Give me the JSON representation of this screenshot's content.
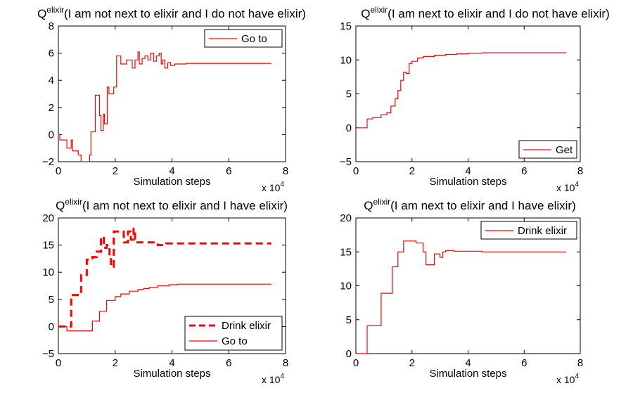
{
  "figure": {
    "charts": [
      {
        "title_q": "Q",
        "title_sup": "elixir",
        "title_rest": "(I am not next to elixir and I do not have elixir)"
      },
      {
        "title_q": "Q",
        "title_sup": "elixir",
        "title_rest": "(I am next to elixir and I do not have elixir)"
      },
      {
        "title_q": "Q",
        "title_sup": "elixir",
        "title_rest": "(I am not next to elixir and I have elixir)"
      },
      {
        "title_q": "Q",
        "title_sup": "elixir",
        "title_rest": "(I am next to elixir and I have elixir)"
      }
    ]
  },
  "chart_data": [
    {
      "type": "line",
      "title": "Q^elixir(I am not next to elixir and I do not have elixir)",
      "xlabel": "Simulation steps",
      "x_multiplier": "x 10^4",
      "xlim": [
        0,
        8
      ],
      "ylim": [
        -2,
        8
      ],
      "xticks": [
        "0",
        "2",
        "4",
        "6",
        "8"
      ],
      "yticks": [
        "-2",
        "0",
        "2",
        "4",
        "6",
        "8"
      ],
      "legend": "top-right",
      "series": [
        {
          "name": "Go to",
          "color": "#ff0000",
          "style": "solid",
          "step": true,
          "x": [
            0,
            0.05,
            0.3,
            0.45,
            0.5,
            0.7,
            0.8,
            1.1,
            1.15,
            1.3,
            1.45,
            1.5,
            1.58,
            1.62,
            1.72,
            1.78,
            1.95,
            2.05,
            2.2,
            2.4,
            2.6,
            2.7,
            2.8,
            2.85,
            2.95,
            3.05,
            3.15,
            3.25,
            3.35,
            3.45,
            3.55,
            3.62,
            3.68,
            3.75,
            3.85,
            3.95,
            4.1,
            4.5,
            5,
            6,
            7,
            7.5
          ],
          "y": [
            0,
            -0.4,
            -1.0,
            -0.4,
            -1.2,
            -1.5,
            -2.0,
            -1.5,
            0.2,
            2.9,
            1.4,
            0.3,
            1.5,
            0.8,
            3.5,
            3.0,
            3.5,
            5.8,
            5.2,
            5.5,
            4.9,
            5.5,
            6.1,
            5.2,
            5.6,
            5.8,
            5.5,
            6.0,
            5.4,
            5.8,
            6.0,
            5.2,
            5.5,
            4.9,
            5.3,
            5.1,
            5.2,
            5.25,
            5.25,
            5.25,
            5.25,
            5.25
          ]
        }
      ]
    },
    {
      "type": "line",
      "title": "Q^elixir(I am next to elixir and I do not have elixir)",
      "xlabel": "Simulation steps",
      "x_multiplier": "x 10^4",
      "xlim": [
        0,
        8
      ],
      "ylim": [
        -5,
        15
      ],
      "xticks": [
        "0",
        "2",
        "4",
        "6",
        "8"
      ],
      "yticks": [
        "-5",
        "0",
        "5",
        "10",
        "15"
      ],
      "legend": "bottom-right",
      "series": [
        {
          "name": "Get",
          "color": "#ff0000",
          "style": "solid",
          "step": true,
          "x": [
            0,
            0.4,
            0.6,
            0.9,
            1.1,
            1.25,
            1.4,
            1.5,
            1.6,
            1.7,
            1.8,
            1.9,
            2.0,
            2.2,
            2.4,
            2.8,
            3.2,
            3.6,
            4.0,
            4.5,
            5,
            6,
            7,
            7.5
          ],
          "y": [
            0,
            1.3,
            1.5,
            1.9,
            2.2,
            3.2,
            4.3,
            5.5,
            7.0,
            8.2,
            8.0,
            9.5,
            9.8,
            10.3,
            10.5,
            10.7,
            10.8,
            10.9,
            11.0,
            11.05,
            11.05,
            11.05,
            11.05,
            11.05
          ]
        }
      ]
    },
    {
      "type": "line",
      "title": "Q^elixir(I am not next to elixir and I have elixir)",
      "xlabel": "Simulation steps",
      "x_multiplier": "x 10^4",
      "xlim": [
        0,
        8
      ],
      "ylim": [
        -5,
        20
      ],
      "xticks": [
        "0",
        "2",
        "4",
        "6",
        "8"
      ],
      "yticks": [
        "-5",
        "0",
        "5",
        "10",
        "15",
        "20"
      ],
      "legend": "bottom-right",
      "series": [
        {
          "name": "Drink elixir",
          "color": "#ff0000",
          "style": "dashed",
          "step": true,
          "x": [
            0,
            0.3,
            0.45,
            0.6,
            0.8,
            1.0,
            1.2,
            1.35,
            1.5,
            1.6,
            1.7,
            1.8,
            1.85,
            1.95,
            2.05,
            2.3,
            2.45,
            2.55,
            2.65,
            2.7,
            3.0,
            3.5,
            3.8,
            4.2,
            5,
            6,
            7,
            7.5
          ],
          "y": [
            0,
            0,
            5.8,
            5.8,
            9.5,
            12.3,
            12.8,
            13.8,
            16.5,
            14.5,
            15.0,
            13.0,
            11.0,
            17.5,
            17.5,
            15.5,
            17.5,
            16.0,
            18.0,
            15.5,
            15.5,
            15.0,
            15.3,
            15.3,
            15.3,
            15.3,
            15.3,
            15.3
          ]
        },
        {
          "name": "Go to",
          "color": "#ff0000",
          "style": "solid",
          "step": true,
          "x": [
            0,
            0.3,
            0.8,
            1.2,
            1.45,
            1.7,
            2.0,
            2.2,
            2.5,
            2.8,
            3.0,
            3.2,
            3.5,
            3.9,
            4.2,
            5,
            6,
            7,
            7.5
          ],
          "y": [
            0,
            -0.8,
            -0.8,
            1.0,
            2.8,
            4.8,
            5.5,
            6.0,
            6.5,
            6.8,
            7.0,
            7.2,
            7.5,
            7.7,
            7.8,
            7.8,
            7.8,
            7.8,
            7.8
          ]
        }
      ]
    },
    {
      "type": "line",
      "title": "Q^elixir(I am next to elixir and I have elixir)",
      "xlabel": "Simulation steps",
      "x_multiplier": "x 10^4",
      "xlim": [
        0,
        8
      ],
      "ylim": [
        0,
        20
      ],
      "xticks": [
        "0",
        "2",
        "4",
        "6",
        "8"
      ],
      "yticks": [
        "0",
        "5",
        "10",
        "15",
        "20"
      ],
      "legend": "top-right",
      "series": [
        {
          "name": "Drink elixir",
          "color": "#ff0000",
          "style": "solid",
          "step": true,
          "x": [
            0,
            0.35,
            0.4,
            0.9,
            1.3,
            1.5,
            1.7,
            2.15,
            2.4,
            2.5,
            2.8,
            3.0,
            3.1,
            3.2,
            3.5,
            4.5,
            5,
            6,
            7,
            7.5
          ],
          "y": [
            0,
            0,
            4.1,
            8.9,
            12.8,
            15.0,
            16.6,
            16.3,
            15.0,
            13.1,
            14.7,
            14.2,
            15.0,
            15.2,
            15.1,
            15.0,
            15.0,
            15.0,
            15.0,
            15.0
          ]
        }
      ]
    }
  ]
}
